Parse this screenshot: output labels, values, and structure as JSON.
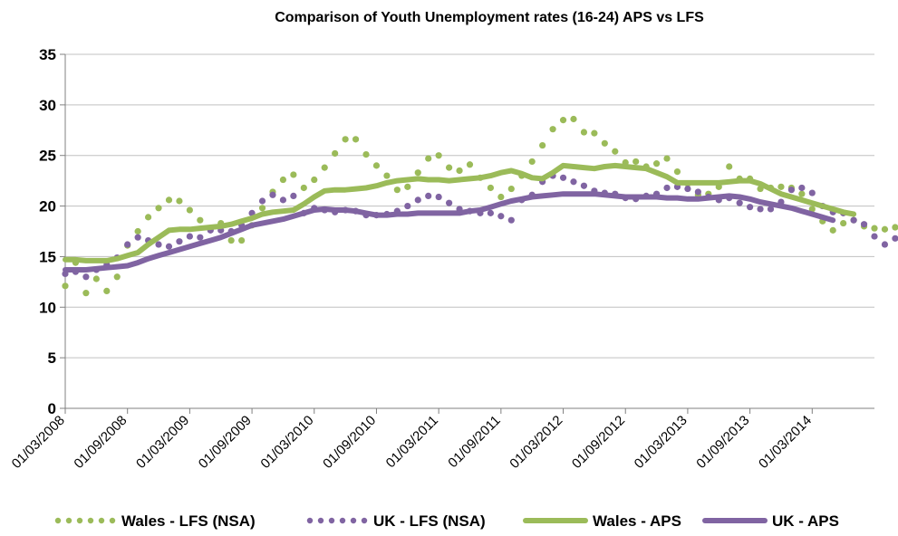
{
  "chart_data": {
    "type": "line",
    "title": "Comparison of Youth Unemployment rates (16-24) APS vs LFS",
    "xlabel": "",
    "ylabel": "",
    "ylim": [
      0,
      35
    ],
    "yticks": [
      0,
      5,
      10,
      15,
      20,
      25,
      30,
      35
    ],
    "x_tick_labels": [
      "01/03/2008",
      "01/09/2008",
      "01/03/2009",
      "01/09/2009",
      "01/03/2010",
      "01/09/2010",
      "01/03/2011",
      "01/09/2011",
      "01/03/2012",
      "01/09/2012",
      "01/03/2013",
      "01/09/2013",
      "01/03/2014"
    ],
    "x_start": "2008-03",
    "x_step_months": 1,
    "grid": "horizontal",
    "legend_position": "bottom",
    "colors": {
      "wales": "#9bbb59",
      "uk": "#8064a2",
      "grid": "#c0c0c0",
      "axis": "#808080"
    },
    "series": [
      {
        "name": "Wales - LFS (NSA)",
        "style": "dotted",
        "color": "#9bbb59",
        "values": [
          12.1,
          14.4,
          11.4,
          12.8,
          11.6,
          13.0,
          16.1,
          17.5,
          18.9,
          19.8,
          20.6,
          20.5,
          19.6,
          18.6,
          17.7,
          18.3,
          16.6,
          16.6,
          18.1,
          19.8,
          21.4,
          22.6,
          23.1,
          21.8,
          22.6,
          23.8,
          25.2,
          26.6,
          26.6,
          25.1,
          24.0,
          23.0,
          21.6,
          21.9,
          23.3,
          24.7,
          25.0,
          23.8,
          23.5,
          24.1,
          22.8,
          21.8,
          20.9,
          21.7,
          23.0,
          24.4,
          26.0,
          27.6,
          28.5,
          28.6,
          27.3,
          27.2,
          26.2,
          25.4,
          24.3,
          24.4,
          23.9,
          24.2,
          24.7,
          23.4,
          22.2,
          21.1,
          21.2,
          21.9,
          23.9,
          22.7,
          22.7,
          21.7,
          21.8,
          21.9,
          21.8,
          21.2,
          19.7,
          18.5,
          17.6,
          18.3,
          18.6,
          18.0,
          17.8,
          17.7,
          17.9
        ]
      },
      {
        "name": "UK - LFS (NSA)",
        "style": "dotted",
        "color": "#8064a2",
        "values": [
          13.3,
          13.5,
          13.0,
          13.7,
          14.2,
          14.9,
          16.2,
          16.9,
          16.6,
          16.2,
          16.0,
          16.5,
          17.0,
          16.9,
          17.6,
          17.6,
          17.5,
          18.1,
          19.3,
          20.5,
          21.1,
          20.6,
          21.0,
          19.3,
          19.8,
          19.6,
          19.4,
          19.6,
          19.5,
          19.1,
          19.1,
          19.2,
          19.5,
          20.0,
          20.6,
          21.0,
          20.9,
          20.3,
          19.7,
          19.5,
          19.3,
          19.3,
          19.0,
          18.6,
          20.6,
          21.1,
          22.4,
          23.0,
          22.8,
          22.4,
          22.0,
          21.5,
          21.3,
          21.2,
          20.8,
          20.7,
          21.0,
          21.2,
          21.8,
          21.9,
          21.7,
          21.4,
          20.9,
          20.6,
          20.8,
          20.3,
          19.9,
          19.7,
          19.7,
          20.4,
          21.6,
          21.8,
          21.3,
          20.0,
          19.4,
          19.3,
          18.6,
          18.2,
          17.0,
          16.2,
          16.8
        ]
      },
      {
        "name": "Wales - APS",
        "style": "solid",
        "color": "#9bbb59",
        "values": [
          14.7,
          14.7,
          14.6,
          14.6,
          14.6,
          14.8,
          15.1,
          15.4,
          16.2,
          16.9,
          17.6,
          17.7,
          17.7,
          17.8,
          17.9,
          18.0,
          18.2,
          18.5,
          18.8,
          19.2,
          19.4,
          19.5,
          19.6,
          20.2,
          20.9,
          21.5,
          21.6,
          21.6,
          21.7,
          21.8,
          22.0,
          22.3,
          22.5,
          22.6,
          22.7,
          22.6,
          22.6,
          22.5,
          22.6,
          22.7,
          22.8,
          23.0,
          23.3,
          23.5,
          23.2,
          22.8,
          22.7,
          23.3,
          24.0,
          23.9,
          23.8,
          23.7,
          23.9,
          24.0,
          23.9,
          23.8,
          23.7,
          23.3,
          22.9,
          22.3,
          22.3,
          22.3,
          22.3,
          22.3,
          22.4,
          22.5,
          22.5,
          22.2,
          21.7,
          21.2,
          20.9,
          20.6,
          20.3,
          20.0,
          19.7,
          19.4,
          19.2
        ]
      },
      {
        "name": "UK - APS",
        "style": "solid",
        "color": "#8064a2",
        "values": [
          13.7,
          13.7,
          13.7,
          13.8,
          13.9,
          14.0,
          14.1,
          14.4,
          14.8,
          15.1,
          15.4,
          15.7,
          16.0,
          16.3,
          16.6,
          16.9,
          17.3,
          17.7,
          18.1,
          18.3,
          18.5,
          18.7,
          19.0,
          19.3,
          19.6,
          19.7,
          19.6,
          19.6,
          19.5,
          19.3,
          19.1,
          19.1,
          19.2,
          19.2,
          19.3,
          19.3,
          19.3,
          19.3,
          19.3,
          19.5,
          19.6,
          19.9,
          20.2,
          20.5,
          20.7,
          20.9,
          21.0,
          21.1,
          21.2,
          21.2,
          21.2,
          21.2,
          21.1,
          21.0,
          20.9,
          20.9,
          20.9,
          20.9,
          20.8,
          20.8,
          20.7,
          20.7,
          20.8,
          20.9,
          21.0,
          20.9,
          20.7,
          20.4,
          20.2,
          20.0,
          19.8,
          19.5,
          19.2,
          18.9,
          18.6
        ]
      }
    ]
  }
}
